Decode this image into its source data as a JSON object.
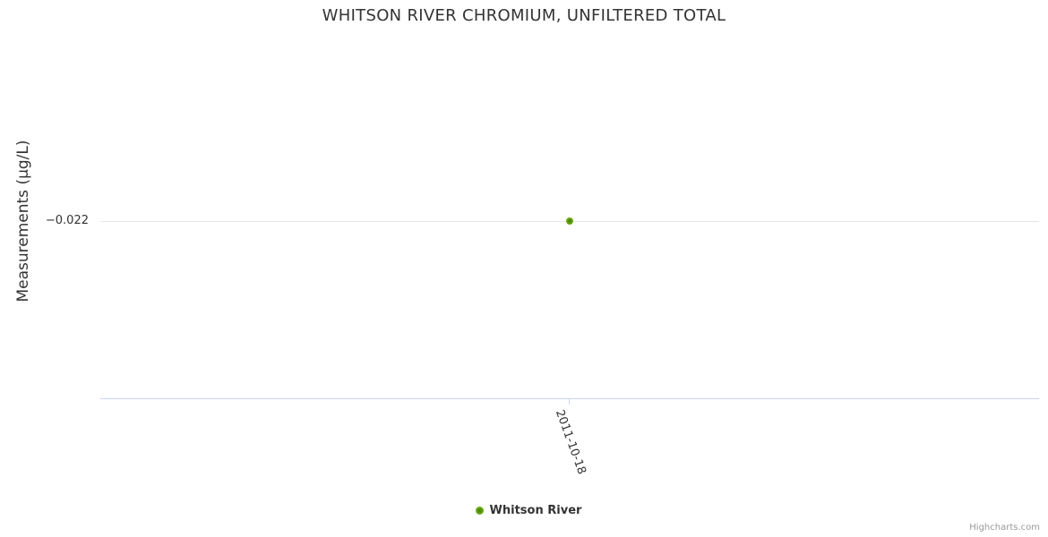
{
  "chart": {
    "title": "WHITSON RIVER CHROMIUM, UNFILTERED TOTAL",
    "y_axis": {
      "title": "Measurements (µg/L)",
      "tick_labels": [
        "−0.022"
      ]
    },
    "x_axis": {
      "tick_labels": [
        "2011-10-18"
      ]
    },
    "legend": {
      "items": [
        {
          "label": "Whitson River",
          "marker_color": "#72b31c"
        }
      ]
    },
    "credits": "Highcharts.com"
  },
  "colors": {
    "series_green": "#72b31c",
    "series_green_dark": "#447c00",
    "gridline": "#e6e6e6",
    "axis_line": "#ccd6eb",
    "text": "#333333",
    "credits_text": "#999999",
    "background": "#ffffff"
  },
  "chart_data": {
    "type": "scatter",
    "title": "WHITSON RIVER CHROMIUM, UNFILTERED TOTAL",
    "xlabel": "",
    "ylabel": "Measurements (µg/L)",
    "x": [
      "2011-10-18"
    ],
    "series": [
      {
        "name": "Whitson River",
        "color": "#72b31c",
        "marker": "circle",
        "data": [
          {
            "x": "2011-10-18",
            "y": -0.022
          }
        ]
      }
    ],
    "yticks": [
      -0.022
    ],
    "xticks": [
      "2011-10-18"
    ],
    "x_tick_rotation_deg": 70,
    "grid": true,
    "gridlines_shown": 1,
    "legend_position": "bottom-center",
    "credits": "Highcharts.com"
  }
}
